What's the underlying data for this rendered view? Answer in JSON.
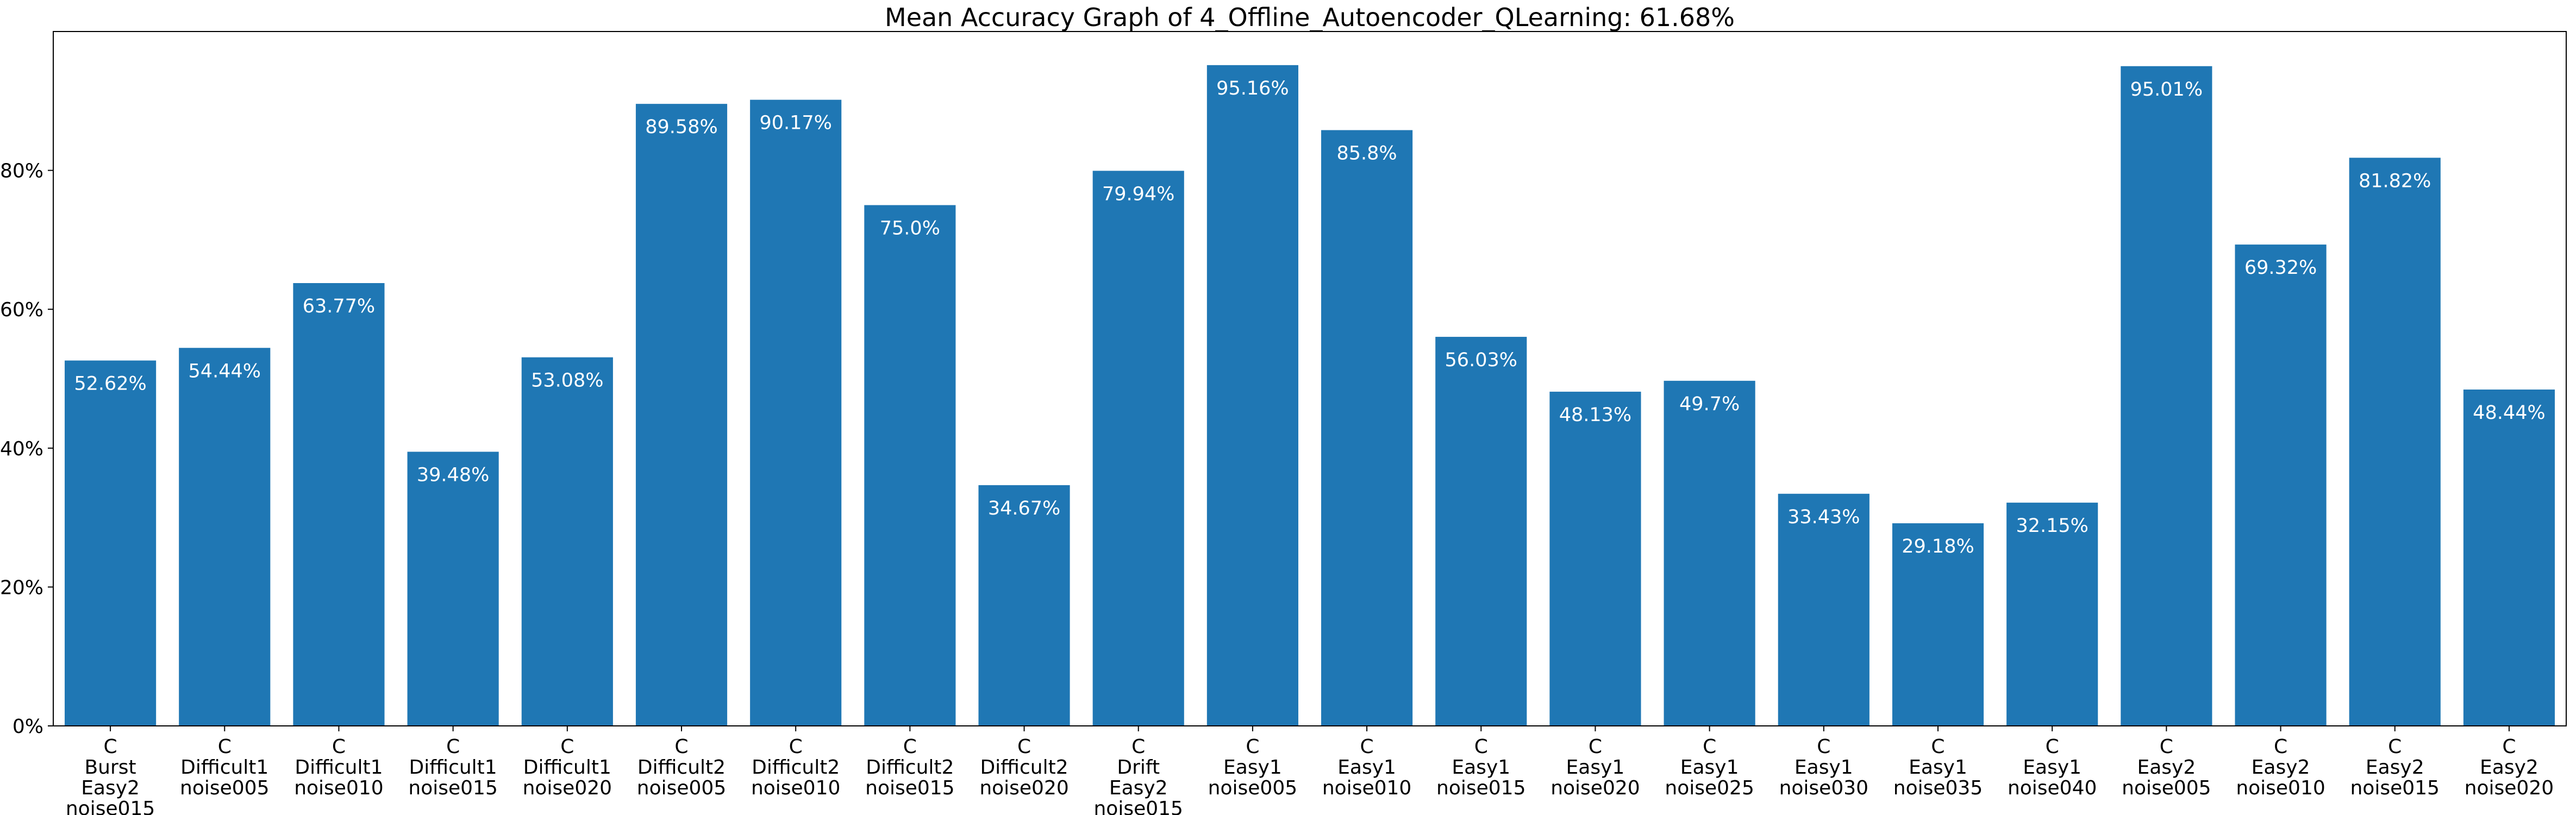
{
  "chart_data": {
    "type": "bar",
    "title": "Mean Accuracy Graph of 4_Offline_Autoencoder_QLearning: 61.68%",
    "xlabel": "",
    "ylabel": "",
    "ylim": [
      0,
      100
    ],
    "grid": false,
    "legend": "none",
    "y_ticks": [
      0,
      20,
      40,
      60,
      80
    ],
    "y_tick_labels": [
      "0%",
      "20%",
      "40%",
      "60%",
      "80%"
    ],
    "categories": [
      [
        "C",
        "Burst",
        "Easy2",
        "noise015"
      ],
      [
        "C",
        "Difficult1",
        "noise005"
      ],
      [
        "C",
        "Difficult1",
        "noise010"
      ],
      [
        "C",
        "Difficult1",
        "noise015"
      ],
      [
        "C",
        "Difficult1",
        "noise020"
      ],
      [
        "C",
        "Difficult2",
        "noise005"
      ],
      [
        "C",
        "Difficult2",
        "noise010"
      ],
      [
        "C",
        "Difficult2",
        "noise015"
      ],
      [
        "C",
        "Difficult2",
        "noise020"
      ],
      [
        "C",
        "Drift",
        "Easy2",
        "noise015"
      ],
      [
        "C",
        "Easy1",
        "noise005"
      ],
      [
        "C",
        "Easy1",
        "noise010"
      ],
      [
        "C",
        "Easy1",
        "noise015"
      ],
      [
        "C",
        "Easy1",
        "noise020"
      ],
      [
        "C",
        "Easy1",
        "noise025"
      ],
      [
        "C",
        "Easy1",
        "noise030"
      ],
      [
        "C",
        "Easy1",
        "noise035"
      ],
      [
        "C",
        "Easy1",
        "noise040"
      ],
      [
        "C",
        "Easy2",
        "noise005"
      ],
      [
        "C",
        "Easy2",
        "noise010"
      ],
      [
        "C",
        "Easy2",
        "noise015"
      ],
      [
        "C",
        "Easy2",
        "noise020"
      ]
    ],
    "values": [
      52.62,
      54.44,
      63.77,
      39.48,
      53.08,
      89.58,
      90.17,
      75.0,
      34.67,
      79.94,
      95.16,
      85.8,
      56.03,
      48.13,
      49.7,
      33.43,
      29.18,
      32.15,
      95.01,
      69.32,
      81.82,
      48.44
    ],
    "value_labels": [
      "52.62%",
      "54.44%",
      "63.77%",
      "39.48%",
      "53.08%",
      "89.58%",
      "90.17%",
      "75.0%",
      "34.67%",
      "79.94%",
      "95.16%",
      "85.8%",
      "56.03%",
      "48.13%",
      "49.7%",
      "33.43%",
      "29.18%",
      "32.15%",
      "95.01%",
      "69.32%",
      "81.82%",
      "48.44%"
    ],
    "colors": {
      "bar": "#1f77b4",
      "bar_label": "#ffffff",
      "axis": "#000000",
      "background": "#ffffff"
    }
  }
}
